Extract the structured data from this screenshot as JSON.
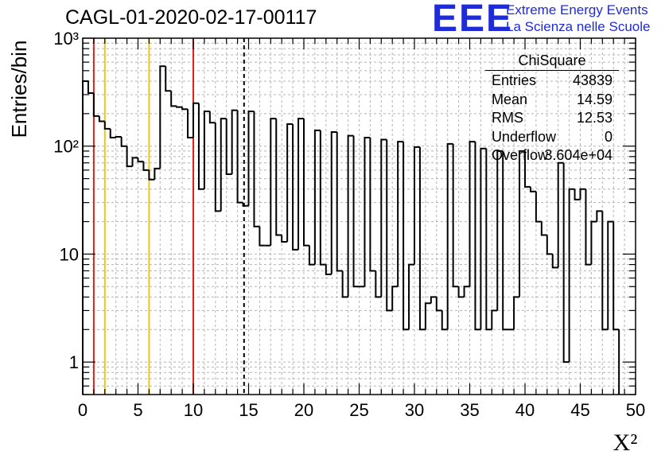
{
  "title": "CAGL-01-2020-02-17-00117",
  "logo": {
    "text": "EEE",
    "line1": "Extreme Energy Events",
    "line2": "La Scienza nelle Scuole",
    "color": "#1f2bd6"
  },
  "stats_box": {
    "title": "ChiSquare",
    "rows": [
      {
        "label": "Entries",
        "value": "43839"
      },
      {
        "label": "Mean",
        "value": "14.59"
      },
      {
        "label": "RMS",
        "value": "12.53"
      },
      {
        "label": "Underflow",
        "value": "0"
      },
      {
        "label": "Overflow",
        "value": "3.604e+04"
      }
    ]
  },
  "chart_data": {
    "type": "histogram",
    "title": "CAGL-01-2020-02-17-00117",
    "xlabel": "X²",
    "ylabel": "Entries/bin",
    "xlim": [
      0,
      50
    ],
    "ylim": [
      0.5,
      1000
    ],
    "y_scale": "log",
    "grid": true,
    "x_ticks": [
      "0",
      "5",
      "10",
      "15",
      "20",
      "25",
      "30",
      "35",
      "40",
      "45",
      "50"
    ],
    "y_ticks": [
      {
        "value": 1,
        "label": "1"
      },
      {
        "value": 10,
        "label": "10"
      },
      {
        "value": 100,
        "label": "10²"
      },
      {
        "value": 1000,
        "label": "10³"
      }
    ],
    "bin_width": 0.5,
    "values": [
      400,
      310,
      190,
      170,
      145,
      120,
      122,
      100,
      65,
      78,
      72,
      60,
      49,
      62,
      550,
      325,
      235,
      230,
      220,
      120,
      250,
      40,
      210,
      165,
      25,
      180,
      55,
      215,
      30,
      28,
      210,
      18,
      12,
      12,
      180,
      15,
      13,
      160,
      11,
      180,
      12,
      8,
      140,
      8,
      6.5,
      135,
      7,
      4,
      125,
      5,
      5,
      120,
      7,
      4,
      115,
      3,
      5,
      110,
      2,
      8,
      98,
      2,
      3.5,
      4,
      3,
      2,
      105,
      5,
      4,
      5,
      110,
      2,
      95,
      2,
      3,
      90,
      2,
      2,
      4,
      90,
      42,
      38,
      20,
      15,
      10,
      7.5,
      70,
      1,
      40,
      32,
      40,
      8,
      20,
      25,
      2,
      20,
      2
    ],
    "vertical_lines": [
      {
        "x": 1,
        "color": "#e0201b",
        "style": "solid"
      },
      {
        "x": 2,
        "color": "#f0c419",
        "style": "solid"
      },
      {
        "x": 6,
        "color": "#f0c419",
        "style": "solid"
      },
      {
        "x": 10,
        "color": "#e0201b",
        "style": "solid"
      },
      {
        "x": 14.59,
        "color": "#000000",
        "style": "dashed"
      }
    ]
  }
}
